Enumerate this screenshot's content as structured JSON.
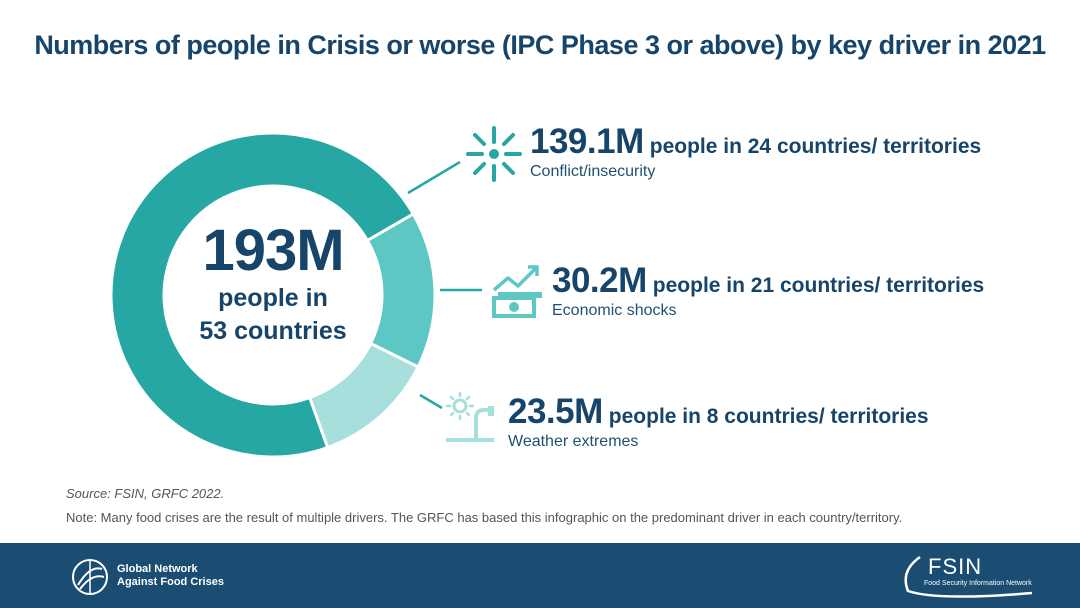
{
  "title": "Numbers of people in Crisis or worse (IPC Phase 3 or above) by key driver in 2021",
  "center": {
    "value": "193M",
    "line1": "people in",
    "line2": "53 countries"
  },
  "chart_data": {
    "type": "pie",
    "title": "Numbers of people in Crisis or worse (IPC Phase 3 or above) by key driver in 2021",
    "total": 193,
    "unit": "M",
    "slices": [
      {
        "label": "Conflict/insecurity",
        "value": 139.1,
        "countries": 24,
        "color": "#26a7a3"
      },
      {
        "label": "Economic shocks",
        "value": 30.2,
        "countries": 21,
        "color": "#5cc7c3"
      },
      {
        "label": "Weather extremes",
        "value": 23.5,
        "countries": 8,
        "color": "#a6dfdc"
      }
    ]
  },
  "drivers": [
    {
      "value": "139.1M",
      "desc": "people in 24 countries/ territories",
      "label": "Conflict/insecurity",
      "icon": "conflict-burst-icon"
    },
    {
      "value": "30.2M",
      "desc": "people in 21 countries/ territories",
      "label": "Economic shocks",
      "icon": "economic-money-chart-icon"
    },
    {
      "value": "23.5M",
      "desc": "people in 8 countries/ territories",
      "label": "Weather extremes",
      "icon": "weather-sun-tap-icon"
    }
  ],
  "source": "Source: FSIN, GRFC 2022.",
  "note": "Note: Many food crises are the result of multiple drivers. The GRFC has based this infographic on the predominant driver in each country/territory.",
  "footer": {
    "left_logo_line1": "Global Network",
    "left_logo_line2": "Against Food Crises",
    "right_logo": "FSIN",
    "right_logo_sub": "Food Security Information Network"
  },
  "colors": {
    "navy": "#17456a",
    "footer": "#1b4c72",
    "teal_dark": "#26a7a3",
    "teal_mid": "#5cc7c3",
    "teal_light": "#a6dfdc"
  }
}
